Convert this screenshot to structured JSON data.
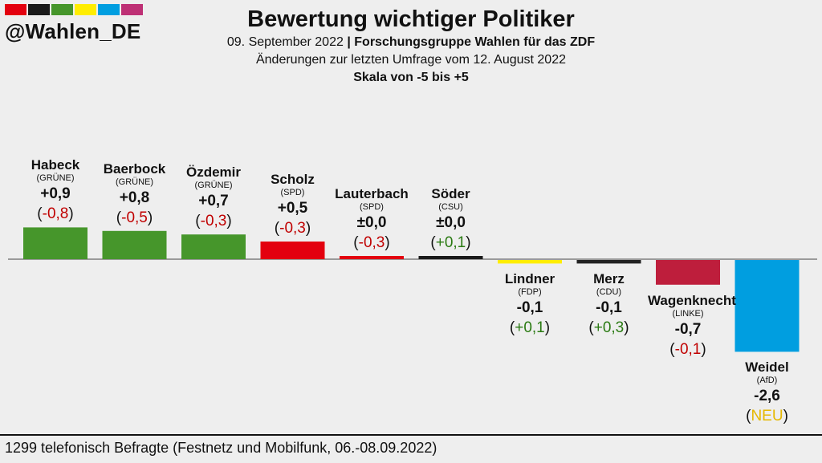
{
  "brand": {
    "handle": "@Wahlen_DE",
    "strip_colors": [
      "#e3000f",
      "#1a1a1a",
      "#46962b",
      "#ffed00",
      "#009ee0",
      "#be3075"
    ]
  },
  "header": {
    "title": "Bewertung wichtiger Politiker",
    "date": "09. September 2022",
    "separator": "|",
    "source": "Forschungsgruppe Wahlen für das ZDF",
    "changes_note": "Änderungen zur letzten Umfrage vom 12. August 2022",
    "scale": "Skala von -5 bis +5"
  },
  "footer": {
    "text": "1299 telefonisch Befragte (Festnetz und Mobilfunk, 06.-08.09.2022)"
  },
  "chart_data": {
    "type": "bar",
    "ylim": [
      -5,
      5
    ],
    "grid": false,
    "categories": [
      "Habeck",
      "Baerbock",
      "Özdemir",
      "Scholz",
      "Lauterbach",
      "Söder",
      "Lindner",
      "Merz",
      "Wagenknecht",
      "Weidel"
    ],
    "parties": [
      "(GRÜNE)",
      "(GRÜNE)",
      "(GRÜNE)",
      "(SPD)",
      "(SPD)",
      "(CSU)",
      "(FDP)",
      "(CDU)",
      "(LINKE)",
      "(AfD)"
    ],
    "values": [
      0.9,
      0.8,
      0.7,
      0.5,
      0.0,
      0.0,
      -0.1,
      -0.1,
      -0.7,
      -2.6
    ],
    "value_labels": [
      "+0,9",
      "+0,8",
      "+0,7",
      "+0,5",
      "±0,0",
      "±0,0",
      "-0,1",
      "-0,1",
      "-0,7",
      "-2,6"
    ],
    "changes": [
      "-0,8",
      "-0,5",
      "-0,3",
      "-0,3",
      "-0,3",
      "+0,1",
      "+0,1",
      "+0,3",
      "-0,1",
      "NEU"
    ],
    "change_colors": [
      "#c00000",
      "#c00000",
      "#c00000",
      "#c00000",
      "#c00000",
      "#2a7a12",
      "#2a7a12",
      "#2a7a12",
      "#c00000",
      "#e6b800"
    ],
    "colors": [
      "#46962b",
      "#46962b",
      "#46962b",
      "#e3000f",
      "#e3000f",
      "#1a1a1a",
      "#ffed00",
      "#222222",
      "#be1e3c",
      "#009ee0"
    ]
  }
}
